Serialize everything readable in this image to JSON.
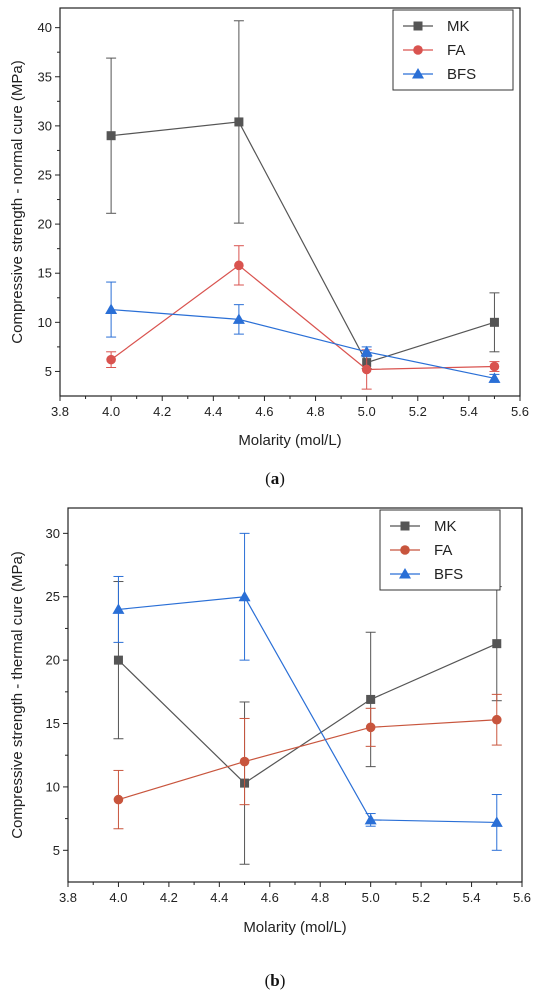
{
  "chart_data": [
    {
      "type": "line",
      "caption_open": "(",
      "caption_letter": "a",
      "caption_close": ")",
      "xlabel": "Molarity (mol/L)",
      "ylabel": "Compressive strength - normal cure (MPa)",
      "xlim": [
        3.8,
        5.6
      ],
      "ylim": [
        2.5,
        42
      ],
      "xticks": [
        3.8,
        4.0,
        4.2,
        4.4,
        4.6,
        4.8,
        5.0,
        5.2,
        5.4,
        5.6
      ],
      "xtick_labels": [
        "3.8",
        "4.0",
        "4.2",
        "4.4",
        "4.6",
        "4.8",
        "5.0",
        "5.2",
        "5.4",
        "5.6"
      ],
      "yticks": [
        5,
        10,
        15,
        20,
        25,
        30,
        35,
        40
      ],
      "ytick_labels": [
        "5",
        "10",
        "15",
        "20",
        "25",
        "30",
        "35",
        "40"
      ],
      "legend_position": "top-right",
      "grid": false,
      "x": [
        4.0,
        4.5,
        5.0,
        5.5
      ],
      "series": [
        {
          "name": "MK",
          "color": "#555555",
          "marker": "square",
          "values": [
            29.0,
            30.4,
            5.9,
            10.0
          ],
          "errors": [
            7.9,
            10.3,
            0.6,
            3.0
          ]
        },
        {
          "name": "FA",
          "color": "#d9534f",
          "marker": "circle",
          "values": [
            6.2,
            15.8,
            5.2,
            5.5
          ],
          "errors": [
            0.8,
            2.0,
            2.0,
            0.5
          ]
        },
        {
          "name": "BFS",
          "color": "#2a6fd6",
          "marker": "triangle",
          "values": [
            11.3,
            10.3,
            7.0,
            4.3
          ],
          "errors": [
            2.8,
            1.5,
            0.5,
            0.4
          ]
        }
      ]
    },
    {
      "type": "line",
      "caption_open": "(",
      "caption_letter": "b",
      "caption_close": ")",
      "xlabel": "Molarity (mol/L)",
      "ylabel": "Compressive strength - thermal cure (MPa)",
      "xlim": [
        3.8,
        5.6
      ],
      "ylim": [
        2.5,
        32
      ],
      "xticks": [
        3.8,
        4.0,
        4.2,
        4.4,
        4.6,
        4.8,
        5.0,
        5.2,
        5.4,
        5.6
      ],
      "xtick_labels": [
        "3.8",
        "4.0",
        "4.2",
        "4.4",
        "4.6",
        "4.8",
        "5.0",
        "5.2",
        "5.4",
        "5.6"
      ],
      "yticks": [
        5,
        10,
        15,
        20,
        25,
        30
      ],
      "ytick_labels": [
        "5",
        "10",
        "15",
        "20",
        "25",
        "30"
      ],
      "legend_position": "top-right",
      "grid": false,
      "x": [
        4.0,
        4.5,
        5.0,
        5.5
      ],
      "series": [
        {
          "name": "MK",
          "color": "#555555",
          "marker": "square",
          "values": [
            20.0,
            10.3,
            16.9,
            21.3
          ],
          "errors": [
            6.2,
            6.4,
            5.3,
            4.5
          ]
        },
        {
          "name": "FA",
          "color": "#c8553d",
          "marker": "circle",
          "values": [
            9.0,
            12.0,
            14.7,
            15.3
          ],
          "errors": [
            2.3,
            3.4,
            1.5,
            2.0
          ]
        },
        {
          "name": "BFS",
          "color": "#2a6fd6",
          "marker": "triangle",
          "values": [
            24.0,
            25.0,
            7.4,
            7.2
          ],
          "errors": [
            2.6,
            5.0,
            0.5,
            2.2
          ]
        }
      ]
    }
  ]
}
